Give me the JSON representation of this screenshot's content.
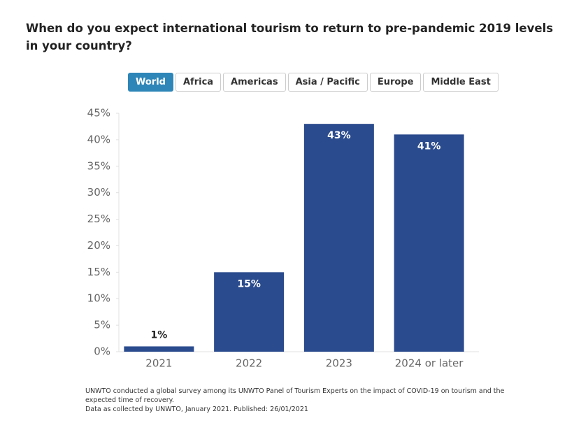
{
  "chart_data": {
    "type": "bar",
    "title": "When do you expect international tourism to return to pre-pandemic 2019 levels in your country?",
    "tabs": [
      "World",
      "Africa",
      "Americas",
      "Asia / Pacific",
      "Europe",
      "Middle East"
    ],
    "selected_tab": "World",
    "categories": [
      "2021",
      "2022",
      "2023",
      "2024 or later"
    ],
    "values": [
      1,
      15,
      43,
      41
    ],
    "value_labels": [
      "1%",
      "15%",
      "43%",
      "41%"
    ],
    "color": "#2a4b8d",
    "ylim": [
      0,
      45
    ],
    "yticks": [
      {
        "value": 0,
        "label": "0%"
      },
      {
        "value": 5,
        "label": "5%"
      },
      {
        "value": 10,
        "label": "10%"
      },
      {
        "value": 15,
        "label": "15%"
      },
      {
        "value": 20,
        "label": "20%"
      },
      {
        "value": 25,
        "label": "25%"
      },
      {
        "value": 30,
        "label": "30%"
      },
      {
        "value": 35,
        "label": "35%"
      },
      {
        "value": 40,
        "label": "40%"
      },
      {
        "value": 45,
        "label": "45%"
      }
    ],
    "notes": [
      "UNWTO conducted a global survey among its UNWTO Panel of Tourism Experts on the impact of COVID-19 on tourism and the expected time of recovery.",
      "Data as collected by UNWTO, January 2021. Published: 26/01/2021"
    ]
  }
}
